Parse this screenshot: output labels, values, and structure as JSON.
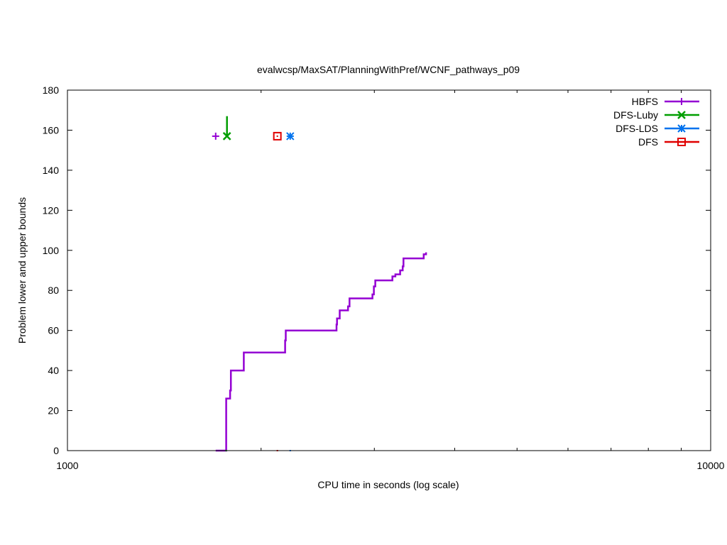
{
  "chart_data": {
    "type": "line",
    "title": "evalwcsp/MaxSAT/PlanningWithPref/WCNF_pathways_p09",
    "xlabel": "CPU time in seconds (log scale)",
    "ylabel": "Problem lower and upper bounds",
    "xscale": "log",
    "xlim": [
      1000,
      10000
    ],
    "ylim": [
      0,
      180
    ],
    "x_ticks": [
      1000,
      10000
    ],
    "x_tick_labels": [
      "1000",
      "10000"
    ],
    "y_ticks": [
      0,
      20,
      40,
      60,
      80,
      100,
      120,
      140,
      160,
      180
    ],
    "y_tick_labels": [
      "0",
      "20",
      "40",
      "60",
      "80",
      "100",
      "120",
      "140",
      "160",
      "180"
    ],
    "grid": false,
    "legend_position": "top-right",
    "series": [
      {
        "name": "HBFS",
        "color": "#9400d3",
        "marker": "plus",
        "lower_bound": [
          [
            1700,
            0
          ],
          [
            1750,
            0
          ],
          [
            1765,
            0
          ],
          [
            1765,
            26
          ],
          [
            1790,
            26
          ],
          [
            1790,
            30
          ],
          [
            1795,
            30
          ],
          [
            1795,
            40
          ],
          [
            1880,
            40
          ],
          [
            1880,
            49
          ],
          [
            2180,
            49
          ],
          [
            2180,
            55
          ],
          [
            2185,
            55
          ],
          [
            2185,
            60
          ],
          [
            2620,
            60
          ],
          [
            2620,
            63
          ],
          [
            2625,
            63
          ],
          [
            2625,
            66
          ],
          [
            2650,
            66
          ],
          [
            2650,
            70
          ],
          [
            2730,
            70
          ],
          [
            2730,
            72
          ],
          [
            2745,
            72
          ],
          [
            2745,
            76
          ],
          [
            2980,
            76
          ],
          [
            2980,
            78
          ],
          [
            2995,
            78
          ],
          [
            2995,
            82
          ],
          [
            3010,
            82
          ],
          [
            3010,
            85
          ],
          [
            3200,
            85
          ],
          [
            3200,
            87
          ],
          [
            3235,
            87
          ],
          [
            3235,
            88
          ],
          [
            3290,
            88
          ],
          [
            3290,
            90
          ],
          [
            3320,
            90
          ],
          [
            3320,
            92
          ],
          [
            3330,
            92
          ],
          [
            3330,
            96
          ],
          [
            3580,
            96
          ],
          [
            3580,
            98
          ],
          [
            3610,
            98
          ],
          [
            3610,
            99
          ]
        ],
        "upper_bound": [
          [
            1700,
            157
          ]
        ]
      },
      {
        "name": "DFS-Luby",
        "color": "#009e00",
        "marker": "x",
        "lower_bound": [
          [
            1765,
            0
          ]
        ],
        "upper_bound": [
          [
            1770,
            167
          ],
          [
            1770,
            157
          ]
        ]
      },
      {
        "name": "DFS-LDS",
        "color": "#0072ee",
        "marker": "star",
        "lower_bound": [
          [
            2220,
            0
          ]
        ],
        "upper_bound": [
          [
            2220,
            157
          ]
        ]
      },
      {
        "name": "DFS",
        "color": "#e00000",
        "marker": "square",
        "lower_bound": [
          [
            2120,
            0
          ]
        ],
        "upper_bound": [
          [
            2120,
            157
          ]
        ]
      }
    ]
  }
}
